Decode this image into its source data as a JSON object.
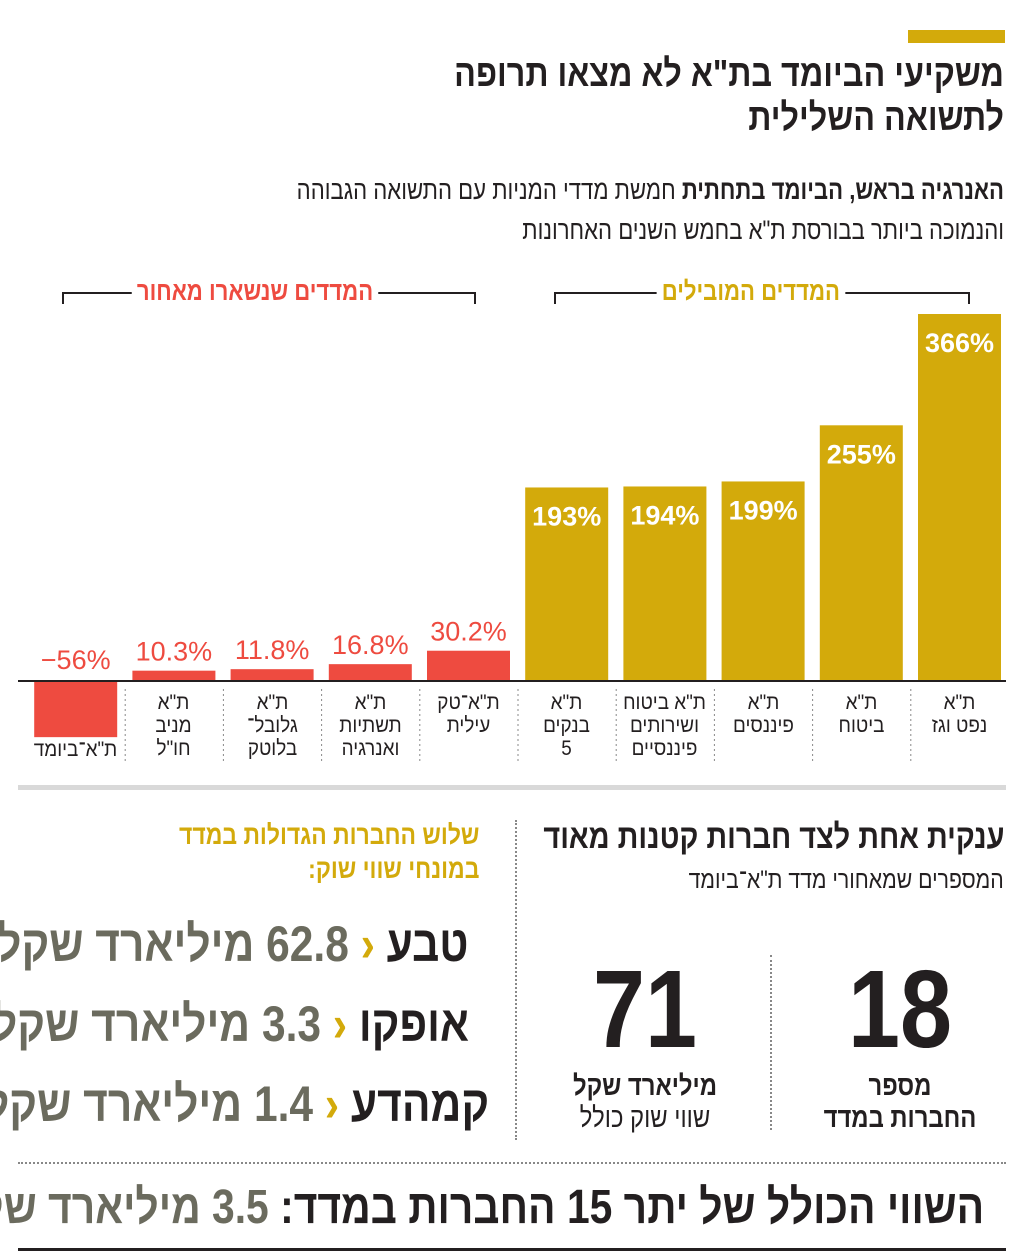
{
  "header": {
    "title_line1": "משקיעי הביומד בת\"א לא מצאו תרופה",
    "title_line2": "לתשואה השלילית",
    "subtitle_bold": "האנרגיה בראש, הביומד בתחתית",
    "subtitle_rest": " חמשת מדדי המניות עם התשואה הגבוהה",
    "subtitle_line2": "והנמוכה ביותר בבורסת ת\"א בחמש השנים האחרונות"
  },
  "groups": {
    "leading": "המדדים המובילים",
    "lagging": "המדדים שנשארו מאחור"
  },
  "colors": {
    "gold": "#d3aa0b",
    "red": "#ee4b40",
    "text": "#231f20",
    "gray": "#6b6b5e"
  },
  "chart_data": {
    "type": "bar",
    "ylim": [
      -56,
      366
    ],
    "categories": [
      "ת\"א נפט וגז",
      "ת\"א ביטוח",
      "ת\"א פיננסים",
      "ת\"א ביטוח ושירותים פיננסיים",
      "ת\"א בנקים 5",
      "ת\"א־טק עילית",
      "ת\"א תשתיות ואנרגיה",
      "ת\"א גלובל־בלוטק",
      "ת\"א מניב חו\"ל",
      "ת\"א־ביומד"
    ],
    "values": [
      366,
      255,
      199,
      194,
      193,
      30.2,
      16.8,
      11.8,
      10.3,
      -56
    ],
    "labels": [
      "366%",
      "255%",
      "199%",
      "194%",
      "193%",
      "30.2%",
      "16.8%",
      "11.8%",
      "10.3%",
      "−56%"
    ]
  },
  "cat_lines": [
    [
      "ת\"א",
      "נפט וגז"
    ],
    [
      "ת\"א",
      "ביטוח"
    ],
    [
      "ת\"א",
      "פיננסים"
    ],
    [
      "ת\"א ביטוח",
      "ושירותים",
      "פיננסיים"
    ],
    [
      "ת\"א",
      "בנקים",
      "5"
    ],
    [
      "ת\"א־טק",
      "עילית"
    ],
    [
      "ת\"א",
      "תשתיות",
      "ואנרגיה"
    ],
    [
      "ת\"א",
      "גלובל־",
      "בלוטק"
    ],
    [
      "ת\"א",
      "מניב",
      "חו\"ל"
    ],
    [
      "ת\"א־ביומד"
    ]
  ],
  "stats": {
    "title": "ענקית אחת לצד חברות קטנות מאוד",
    "subtitle": "המספרים שמאחורי מדד ת\"א־ביומד",
    "count_value": "18",
    "count_label1": "מספר",
    "count_label2": "החברות במדד",
    "cap_value": "71",
    "cap_label1": "מיליארד שקל",
    "cap_label2": "שווי שוק כולל"
  },
  "largest": {
    "title1": "שלוש החברות הגדולות במדד",
    "title2": "במונחי שווי שוק:",
    "items": [
      {
        "name": "טבע",
        "value": "62.8",
        "unit": "מיליארד שקל"
      },
      {
        "name": "אופקו",
        "value": "3.3",
        "unit": "מיליארד שקל"
      },
      {
        "name": "קמהדע",
        "value": "1.4",
        "unit": "מיליארד שקל"
      }
    ]
  },
  "total": {
    "label": "השווי הכולל של יתר 15 החברות במדד:",
    "value": "3.5",
    "unit": "מיליארד שקל"
  }
}
